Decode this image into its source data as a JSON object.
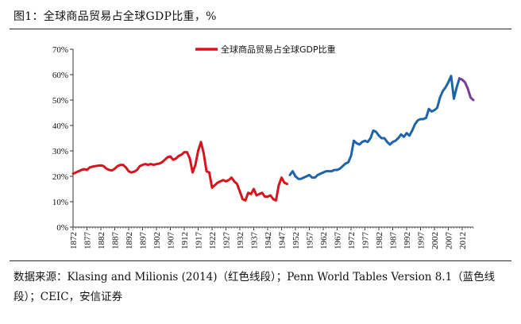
{
  "figure": {
    "title": "图1：全球商品贸易占全球GDP比重，%",
    "source": "数据来源：Klasing and Milionis (2014)（红色线段）；Penn World Tables Version 8.1（蓝色线段）；CEIC，安信证券"
  },
  "chart_data": {
    "type": "line",
    "title": "全球商品贸易占全球GDP比重，%",
    "xlabel": "",
    "ylabel": "",
    "xlim": [
      1872,
      2016
    ],
    "ylim": [
      0,
      70
    ],
    "y_ticks": [
      0,
      10,
      20,
      30,
      40,
      50,
      60,
      70
    ],
    "y_tick_labels": [
      "0%",
      "10%",
      "20%",
      "30%",
      "40%",
      "50%",
      "60%",
      "70%"
    ],
    "x_ticks": [
      1872,
      1877,
      1882,
      1887,
      1892,
      1897,
      1902,
      1907,
      1912,
      1917,
      1922,
      1927,
      1932,
      1937,
      1942,
      1947,
      1952,
      1957,
      1962,
      1967,
      1972,
      1977,
      1982,
      1987,
      1992,
      1997,
      2002,
      2007,
      2012
    ],
    "x_tick_labels": [
      "1872",
      "1877",
      "1882",
      "1887",
      "1892",
      "1897",
      "1902",
      "1907",
      "1912",
      "1917",
      "1922",
      "1927",
      "1932",
      "1937",
      "1942",
      "1947",
      "1952",
      "1957",
      "1962",
      "1967",
      "1972",
      "1977",
      "1982",
      "1987",
      "1992",
      "1997",
      "2002",
      "2007",
      "2012"
    ],
    "grid": false,
    "legend": {
      "entries": [
        "全球商品贸易占全球GDP比重"
      ],
      "placement": "top-center"
    },
    "series": [
      {
        "name": "全球商品贸易占全球GDP比重",
        "source": "Klasing and Milionis (2014)",
        "color": "#d7141b",
        "points": [
          [
            1872,
            21.0
          ],
          [
            1873,
            21.5
          ],
          [
            1874,
            22.0
          ],
          [
            1875,
            22.5
          ],
          [
            1876,
            22.8
          ],
          [
            1877,
            22.5
          ],
          [
            1878,
            23.5
          ],
          [
            1879,
            23.8
          ],
          [
            1880,
            24.0
          ],
          [
            1881,
            24.2
          ],
          [
            1882,
            24.3
          ],
          [
            1883,
            24.0
          ],
          [
            1884,
            23.0
          ],
          [
            1885,
            22.5
          ],
          [
            1886,
            22.3
          ],
          [
            1887,
            23.0
          ],
          [
            1888,
            24.0
          ],
          [
            1889,
            24.5
          ],
          [
            1890,
            24.5
          ],
          [
            1891,
            23.5
          ],
          [
            1892,
            22.0
          ],
          [
            1893,
            21.5
          ],
          [
            1894,
            21.8
          ],
          [
            1895,
            22.5
          ],
          [
            1896,
            24.0
          ],
          [
            1897,
            24.5
          ],
          [
            1898,
            24.8
          ],
          [
            1899,
            24.5
          ],
          [
            1900,
            24.8
          ],
          [
            1901,
            24.5
          ],
          [
            1902,
            24.8
          ],
          [
            1903,
            25.0
          ],
          [
            1904,
            25.5
          ],
          [
            1905,
            26.5
          ],
          [
            1906,
            27.5
          ],
          [
            1907,
            27.8
          ],
          [
            1908,
            26.5
          ],
          [
            1909,
            27.0
          ],
          [
            1910,
            28.0
          ],
          [
            1911,
            28.5
          ],
          [
            1912,
            29.5
          ],
          [
            1913,
            29.5
          ],
          [
            1914,
            27.0
          ],
          [
            1915,
            21.5
          ],
          [
            1916,
            24.5
          ],
          [
            1917,
            30.0
          ],
          [
            1918,
            33.5
          ],
          [
            1919,
            29.0
          ],
          [
            1920,
            22.0
          ],
          [
            1921,
            21.5
          ],
          [
            1922,
            15.5
          ],
          [
            1923,
            16.5
          ],
          [
            1924,
            17.5
          ],
          [
            1925,
            18.0
          ],
          [
            1926,
            18.5
          ],
          [
            1927,
            18.0
          ],
          [
            1928,
            18.5
          ],
          [
            1929,
            19.5
          ],
          [
            1930,
            18.0
          ],
          [
            1931,
            17.0
          ],
          [
            1932,
            14.0
          ],
          [
            1933,
            11.0
          ],
          [
            1934,
            10.5
          ],
          [
            1935,
            13.5
          ],
          [
            1936,
            13.0
          ],
          [
            1937,
            15.0
          ],
          [
            1938,
            12.5
          ],
          [
            1939,
            13.0
          ],
          [
            1940,
            13.5
          ],
          [
            1941,
            12.0
          ],
          [
            1942,
            12.0
          ],
          [
            1943,
            12.5
          ],
          [
            1944,
            11.0
          ],
          [
            1945,
            10.5
          ],
          [
            1946,
            16.5
          ],
          [
            1947,
            19.5
          ],
          [
            1948,
            17.5
          ],
          [
            1949,
            17.0
          ]
        ]
      },
      {
        "name": "全球商品贸易占全球GDP比重",
        "source": "Penn World Tables Version 8.1",
        "color": "#1f64a8",
        "points": [
          [
            1950,
            20.5
          ],
          [
            1951,
            22.0
          ],
          [
            1952,
            20.0
          ],
          [
            1953,
            19.0
          ],
          [
            1954,
            19.0
          ],
          [
            1955,
            19.5
          ],
          [
            1956,
            20.0
          ],
          [
            1957,
            20.5
          ],
          [
            1958,
            19.5
          ],
          [
            1959,
            19.5
          ],
          [
            1960,
            20.5
          ],
          [
            1961,
            21.0
          ],
          [
            1962,
            21.5
          ],
          [
            1963,
            22.0
          ],
          [
            1964,
            22.0
          ],
          [
            1965,
            22.0
          ],
          [
            1966,
            22.5
          ],
          [
            1967,
            22.5
          ],
          [
            1968,
            23.0
          ],
          [
            1969,
            24.0
          ],
          [
            1970,
            25.0
          ],
          [
            1971,
            25.5
          ],
          [
            1972,
            28.0
          ],
          [
            1973,
            34.0
          ],
          [
            1974,
            33.0
          ],
          [
            1975,
            32.5
          ],
          [
            1976,
            33.5
          ],
          [
            1977,
            34.0
          ],
          [
            1978,
            33.5
          ],
          [
            1979,
            35.0
          ],
          [
            1980,
            38.0
          ],
          [
            1981,
            37.5
          ],
          [
            1982,
            36.0
          ],
          [
            1983,
            35.0
          ],
          [
            1984,
            35.0
          ],
          [
            1985,
            33.5
          ],
          [
            1986,
            32.5
          ],
          [
            1987,
            33.5
          ],
          [
            1988,
            34.0
          ],
          [
            1989,
            35.0
          ],
          [
            1990,
            36.5
          ],
          [
            1991,
            35.5
          ],
          [
            1992,
            37.0
          ],
          [
            1993,
            36.0
          ],
          [
            1994,
            38.0
          ],
          [
            1995,
            40.5
          ],
          [
            1996,
            42.0
          ],
          [
            1997,
            42.5
          ],
          [
            1998,
            42.5
          ],
          [
            1999,
            43.0
          ],
          [
            2000,
            46.5
          ],
          [
            2001,
            45.5
          ],
          [
            2002,
            46.0
          ],
          [
            2003,
            47.0
          ],
          [
            2004,
            51.0
          ],
          [
            2005,
            53.5
          ],
          [
            2006,
            55.0
          ],
          [
            2007,
            57.0
          ],
          [
            2008,
            59.5
          ],
          [
            2009,
            50.5
          ],
          [
            2010,
            55.0
          ],
          [
            2011,
            58.5
          ]
        ]
      },
      {
        "name": "全球商品贸易占全球GDP比重",
        "source": "CEIC",
        "color": "#7a3a9a",
        "points": [
          [
            2011,
            58.5
          ],
          [
            2012,
            58.0
          ],
          [
            2013,
            57.0
          ],
          [
            2014,
            54.5
          ],
          [
            2015,
            51.0
          ],
          [
            2016,
            50.0
          ]
        ]
      }
    ]
  }
}
